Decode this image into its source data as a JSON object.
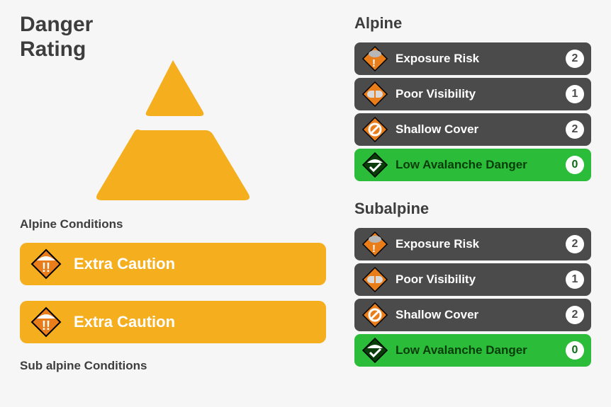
{
  "title": "Danger\nRating",
  "colors": {
    "page_bg": "#f6f6f6",
    "text_dark": "#3d3d3d",
    "caution_bg": "#f4ae1e",
    "caution_text": "#ffffff",
    "hazard_dark_bg": "#4b4b4b",
    "hazard_green_bg": "#2bbd3a",
    "hazard_green_text": "#0a3d0a",
    "pill_bg": "#ffffff",
    "triangle_fill": "#f4ae1e"
  },
  "sections": {
    "alpine_conditions_label": "Alpine Conditions",
    "subalpine_conditions_label": "Sub alpine Conditions"
  },
  "caution_bars": [
    {
      "label": "Extra Caution",
      "icon": "extra-caution-icon"
    },
    {
      "label": "Extra Caution",
      "icon": "extra-caution-icon"
    }
  ],
  "zones": [
    {
      "title": "Alpine",
      "hazards": [
        {
          "label": "Exposure Risk",
          "score": "2",
          "icon": "exposure-risk-icon",
          "style": "dark"
        },
        {
          "label": "Poor Visibility",
          "score": "1",
          "icon": "poor-visibility-icon",
          "style": "dark"
        },
        {
          "label": "Shallow Cover",
          "score": "2",
          "icon": "shallow-cover-icon",
          "style": "dark"
        },
        {
          "label": "Low Avalanche Danger",
          "score": "0",
          "icon": "low-avalanche-icon",
          "style": "green"
        }
      ]
    },
    {
      "title": "Subalpine",
      "hazards": [
        {
          "label": "Exposure Risk",
          "score": "2",
          "icon": "exposure-risk-icon",
          "style": "dark"
        },
        {
          "label": "Poor Visibility",
          "score": "1",
          "icon": "poor-visibility-icon",
          "style": "dark"
        },
        {
          "label": "Shallow Cover",
          "score": "2",
          "icon": "shallow-cover-icon",
          "style": "dark"
        },
        {
          "label": "Low Avalanche Danger",
          "score": "0",
          "icon": "low-avalanche-icon",
          "style": "green"
        }
      ]
    }
  ]
}
